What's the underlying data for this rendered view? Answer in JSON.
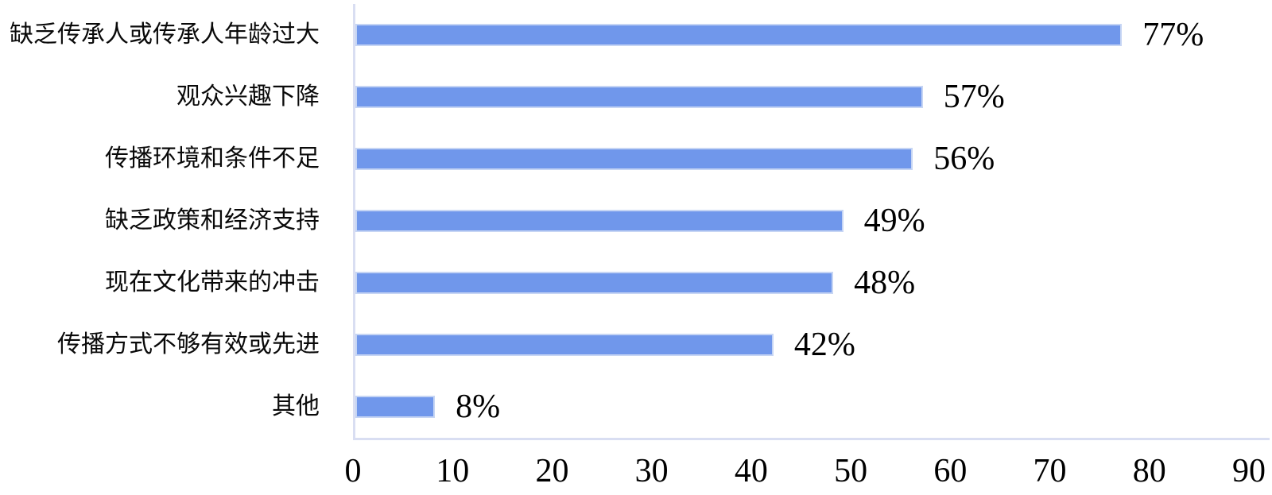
{
  "chart_data": {
    "type": "bar",
    "orientation": "horizontal",
    "title": "",
    "xlabel": "",
    "ylabel": "",
    "categories": [
      "缺乏传承人或传承人年龄过大",
      "观众兴趣下降",
      "传播环境和条件不足",
      "缺乏政策和经济支持",
      "现在文化带来的冲击",
      "传播方式不够有效或先进",
      "其他"
    ],
    "values": [
      77,
      57,
      56,
      49,
      48,
      42,
      8
    ],
    "value_labels": [
      "77%",
      "57%",
      "56%",
      "49%",
      "48%",
      "42%",
      "8%"
    ],
    "xlim": [
      0,
      90
    ],
    "x_ticks": [
      "0",
      "10",
      "20",
      "30",
      "40",
      "50",
      "60",
      "70",
      "80",
      "90"
    ],
    "grid": false,
    "legend": false,
    "bar_color": "#7097EB",
    "bar_border_color": "#C6D5F4",
    "axis_line_color": "#D9DEF2",
    "text_color": "#000000"
  }
}
